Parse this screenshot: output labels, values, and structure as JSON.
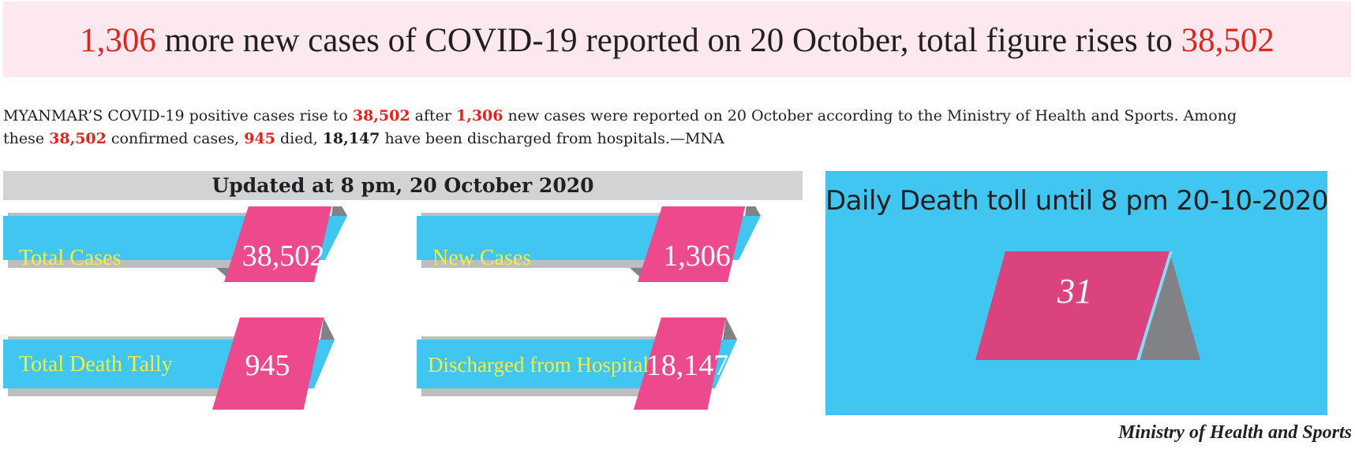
{
  "headline": {
    "new_cases": "1,306",
    "text_middle": " more new cases of COVID-19 reported on 20 October, total figure rises to ",
    "total": "38,502"
  },
  "intro": {
    "p1": "MYANMAR’S COVID-19 positive cases rise to ",
    "v1": "38,502",
    "p2": " after ",
    "v2": "1,306",
    "p3": " new cases were reported on 20 October according to the Ministry of Health and Sports. Among",
    "p4": "these ",
    "v3": "38,502",
    "p5": " confirmed cases, ",
    "v4": "945",
    "p6": " died, ",
    "v5": "18,147",
    "p7": " have been discharged from hospitals.—MNA"
  },
  "updated_label": "Updated at 8 pm, 20 October 2020",
  "stats": [
    {
      "label": "Total Cases",
      "value": "38,502"
    },
    {
      "label": "New Cases",
      "value": "1,306"
    },
    {
      "label": "Total Death Tally",
      "value": "945"
    },
    {
      "label": "Discharged from Hospital",
      "value": "18,147"
    }
  ],
  "daily_death": {
    "title": "Daily Death toll until 8 pm 20-10-2020",
    "value": "31"
  },
  "source": "Ministry of Health and Sports",
  "colors": {
    "headline_bg": "#fde8ef",
    "accent_red": "#e1251b",
    "banner_blue": "#41c6f1",
    "tag_pink": "#ec4a8c",
    "shadow_gray": "#808285",
    "label_yellow": "#f4ee3c"
  }
}
